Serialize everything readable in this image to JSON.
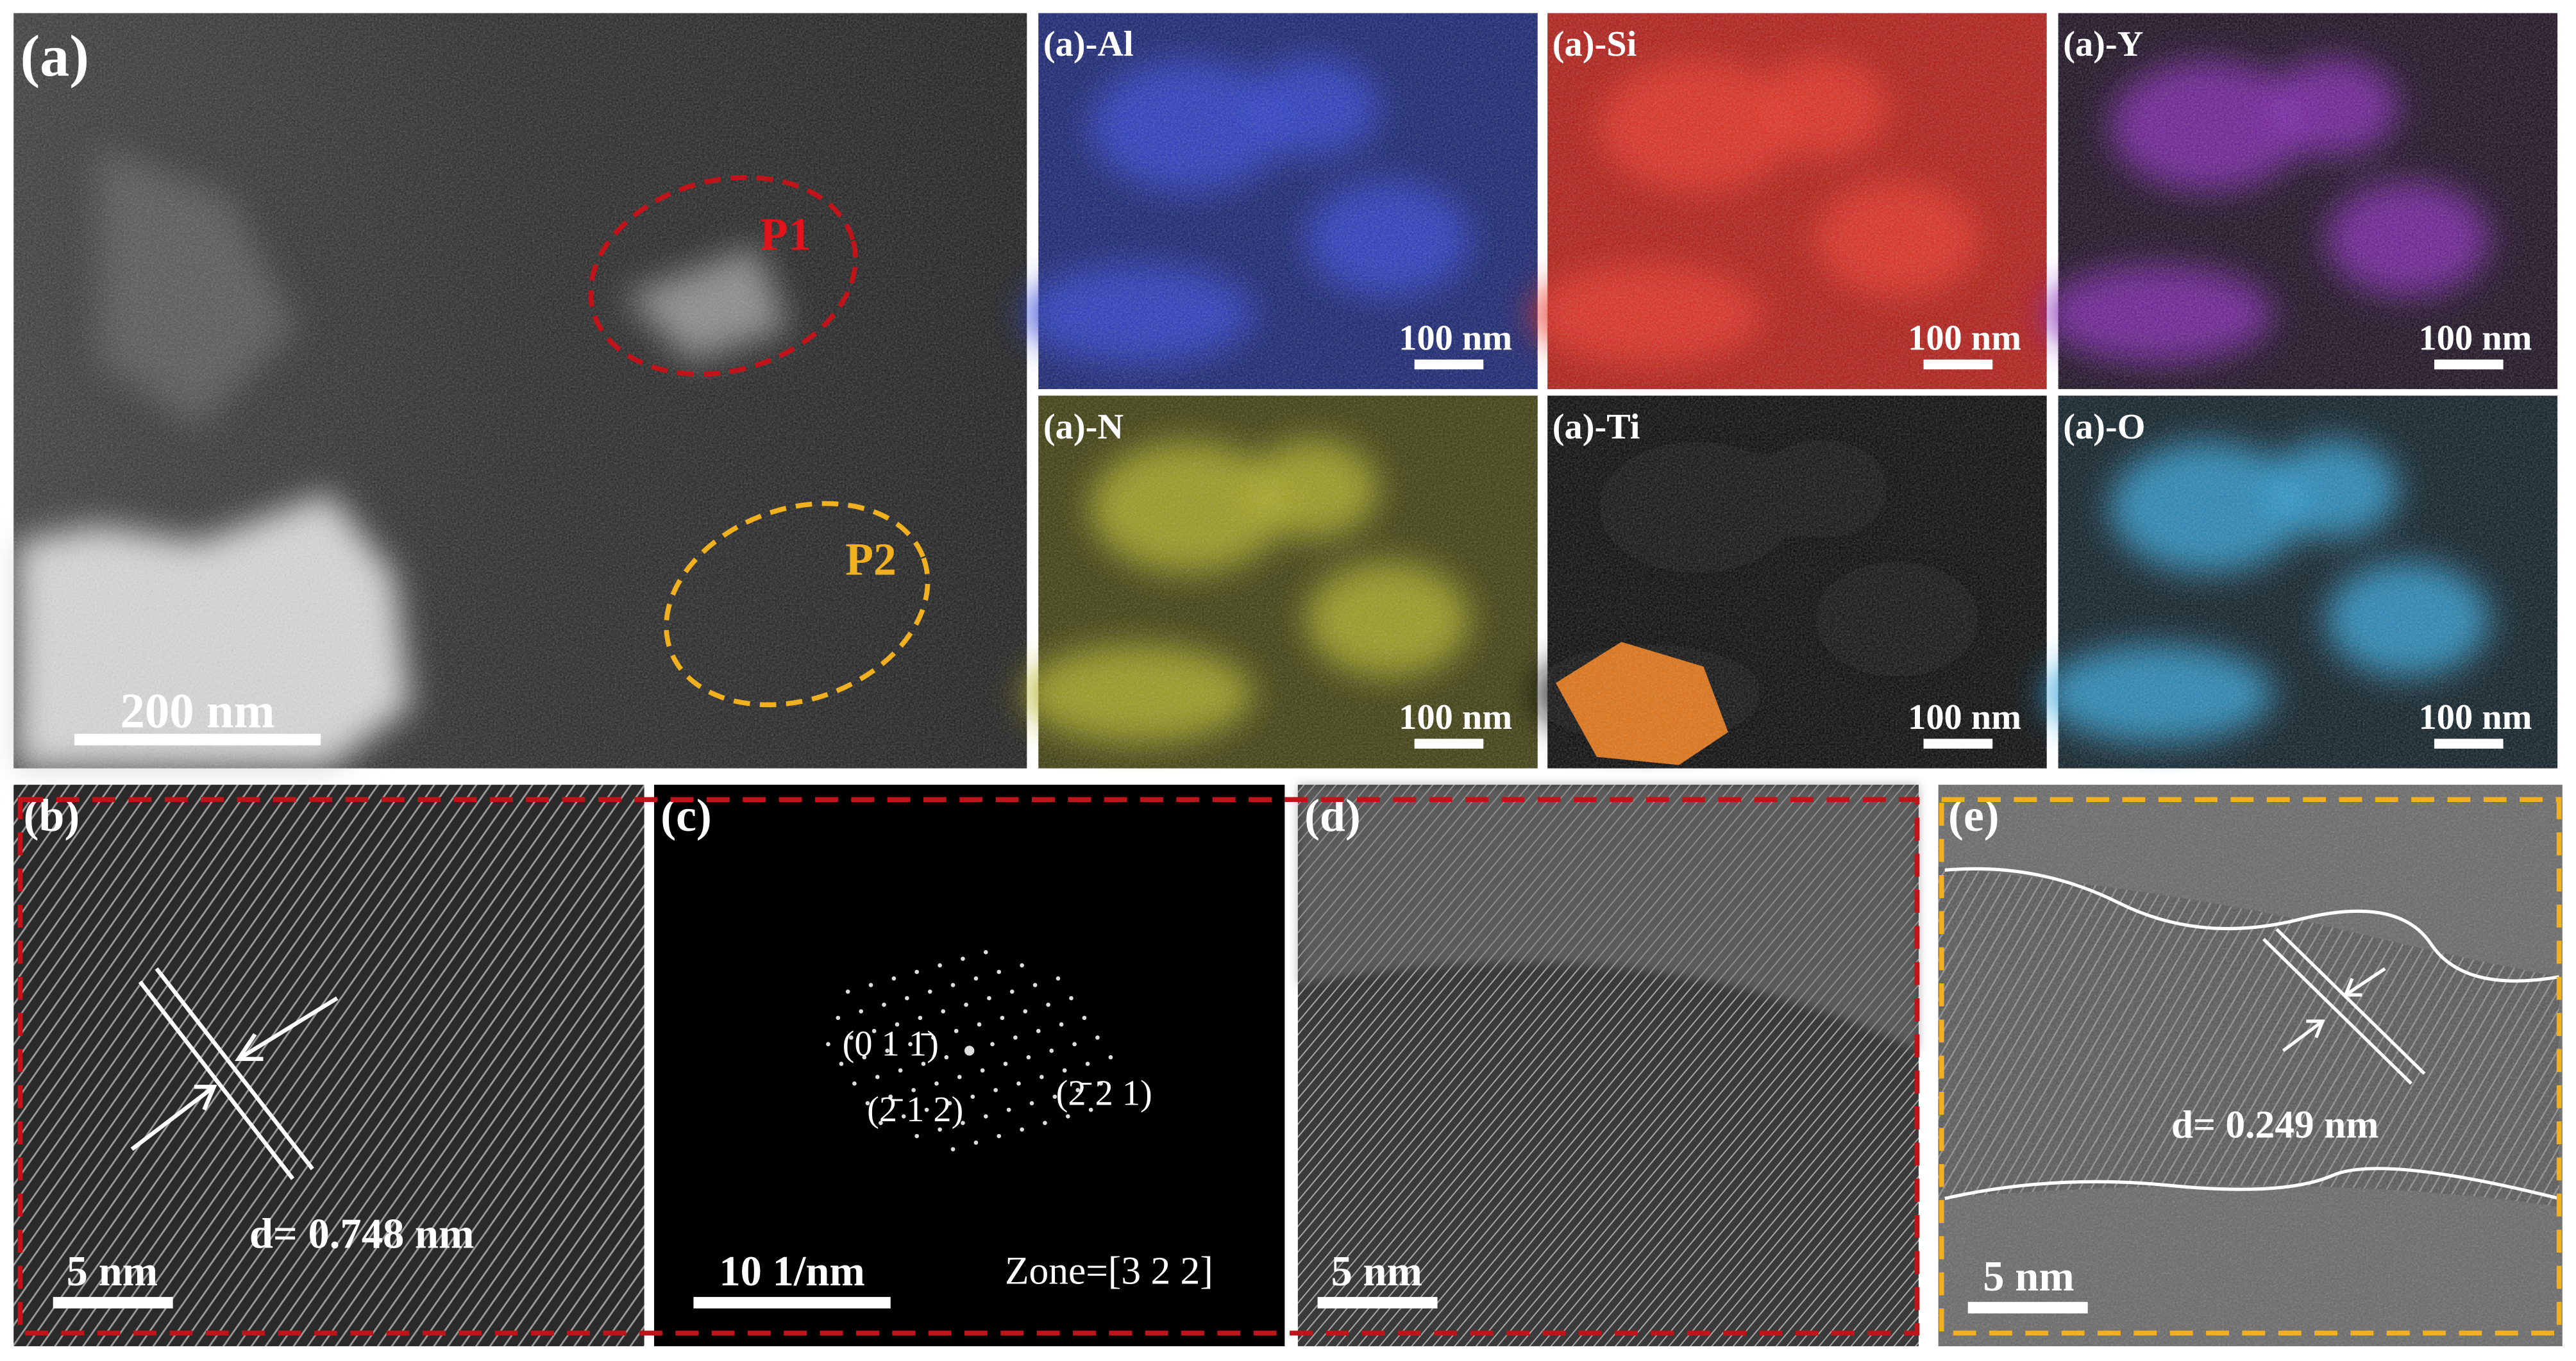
{
  "panel_a": {
    "label": "(a)",
    "regions": [
      {
        "label": "P1"
      },
      {
        "label": "P2"
      }
    ],
    "scale_bar": "200 nm"
  },
  "eds_maps": [
    {
      "label": "(a)-Al",
      "scale_bar": "100 nm"
    },
    {
      "label": "(a)-Si",
      "scale_bar": "100 nm"
    },
    {
      "label": "(a)-Y",
      "scale_bar": "100 nm"
    },
    {
      "label": "(a)-N",
      "scale_bar": "100 nm"
    },
    {
      "label": "(a)-Ti",
      "scale_bar": "100 nm"
    },
    {
      "label": "(a)-O",
      "scale_bar": "100 nm"
    }
  ],
  "panel_b": {
    "label": "(b)",
    "spacing": "d= 0.748 nm",
    "scale_bar": "5 nm"
  },
  "panel_c": {
    "label": "(c)",
    "spots": [
      "(0 1 1̄)",
      "(2̄ 1 2)",
      "(2̄ 2 1)"
    ],
    "zone": "Zone=[3 2 2]",
    "scale_bar": "10 1/nm"
  },
  "panel_d": {
    "label": "(d)",
    "scale_bar": "5 nm"
  },
  "panel_e": {
    "label": "(e)",
    "spacing": "d= 0.249 nm",
    "scale_bar": "5 nm"
  }
}
